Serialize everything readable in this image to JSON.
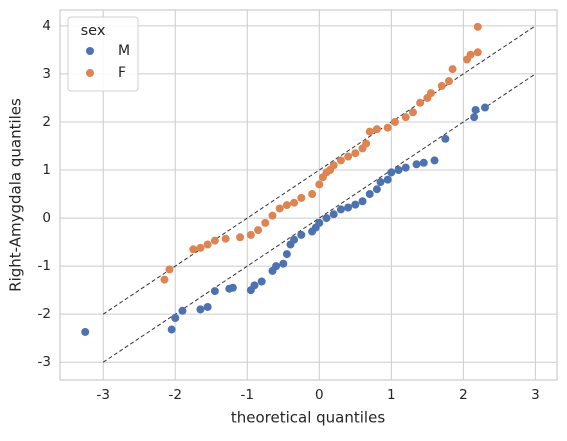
{
  "chart_data": {
    "type": "scatter",
    "x_label": "theoretical quantiles",
    "y_label": "Right-Amygdala quantiles",
    "xlim": [
      -3.6,
      3.3
    ],
    "ylim": [
      -3.37,
      4.33
    ],
    "xticks": [
      -3,
      -2,
      -1,
      0,
      1,
      2,
      3
    ],
    "yticks": [
      -3,
      -2,
      -1,
      0,
      1,
      2,
      3,
      4
    ],
    "grid": true,
    "legend_title": "sex",
    "legend_position": "upper-left",
    "reference_lines": [
      {
        "x": [
          -3,
          3
        ],
        "y": [
          -2,
          4
        ]
      },
      {
        "x": [
          -3,
          3
        ],
        "y": [
          -3,
          3
        ]
      }
    ],
    "series": [
      {
        "name": "M",
        "color": "#4c72b0",
        "x": [
          -3.25,
          -2.05,
          -2.0,
          -1.9,
          -1.65,
          -1.55,
          -1.45,
          -1.25,
          -1.2,
          -0.95,
          -0.9,
          -0.8,
          -0.65,
          -0.6,
          -0.5,
          -0.45,
          -0.4,
          -0.35,
          -0.25,
          -0.1,
          -0.05,
          0.0,
          0.1,
          0.2,
          0.3,
          0.4,
          0.5,
          0.6,
          0.7,
          0.8,
          0.85,
          0.95,
          1.0,
          1.1,
          1.2,
          1.35,
          1.45,
          1.6,
          1.75,
          2.15,
          2.17,
          2.3
        ],
        "values": [
          -2.37,
          -2.32,
          -2.08,
          -1.93,
          -1.9,
          -1.85,
          -1.52,
          -1.47,
          -1.45,
          -1.5,
          -1.4,
          -1.32,
          -1.1,
          -1.0,
          -0.95,
          -0.75,
          -0.55,
          -0.45,
          -0.35,
          -0.28,
          -0.2,
          -0.1,
          0.0,
          0.08,
          0.18,
          0.22,
          0.28,
          0.35,
          0.5,
          0.6,
          0.75,
          0.8,
          0.95,
          1.0,
          1.05,
          1.12,
          1.15,
          1.2,
          1.65,
          2.1,
          2.25,
          2.3
        ]
      },
      {
        "name": "F",
        "color": "#dd8452",
        "x": [
          -2.15,
          -2.08,
          -1.75,
          -1.65,
          -1.55,
          -1.45,
          -1.3,
          -1.1,
          -0.95,
          -0.85,
          -0.75,
          -0.65,
          -0.55,
          -0.45,
          -0.35,
          -0.25,
          -0.1,
          0.0,
          0.05,
          0.1,
          0.15,
          0.2,
          0.3,
          0.4,
          0.5,
          0.6,
          0.65,
          0.7,
          0.8,
          0.95,
          1.05,
          1.2,
          1.3,
          1.4,
          1.5,
          1.55,
          1.7,
          1.8,
          1.85,
          2.05,
          2.1,
          2.2,
          2.2
        ],
        "values": [
          -1.28,
          -1.07,
          -0.65,
          -0.62,
          -0.55,
          -0.47,
          -0.43,
          -0.4,
          -0.35,
          -0.25,
          -0.1,
          0.05,
          0.2,
          0.27,
          0.32,
          0.42,
          0.5,
          0.7,
          0.85,
          0.95,
          1.0,
          1.1,
          1.2,
          1.28,
          1.35,
          1.45,
          1.55,
          1.8,
          1.85,
          1.88,
          2.0,
          2.1,
          2.2,
          2.4,
          2.5,
          2.6,
          2.75,
          2.85,
          3.1,
          3.3,
          3.4,
          3.45,
          3.98
        ]
      }
    ]
  }
}
